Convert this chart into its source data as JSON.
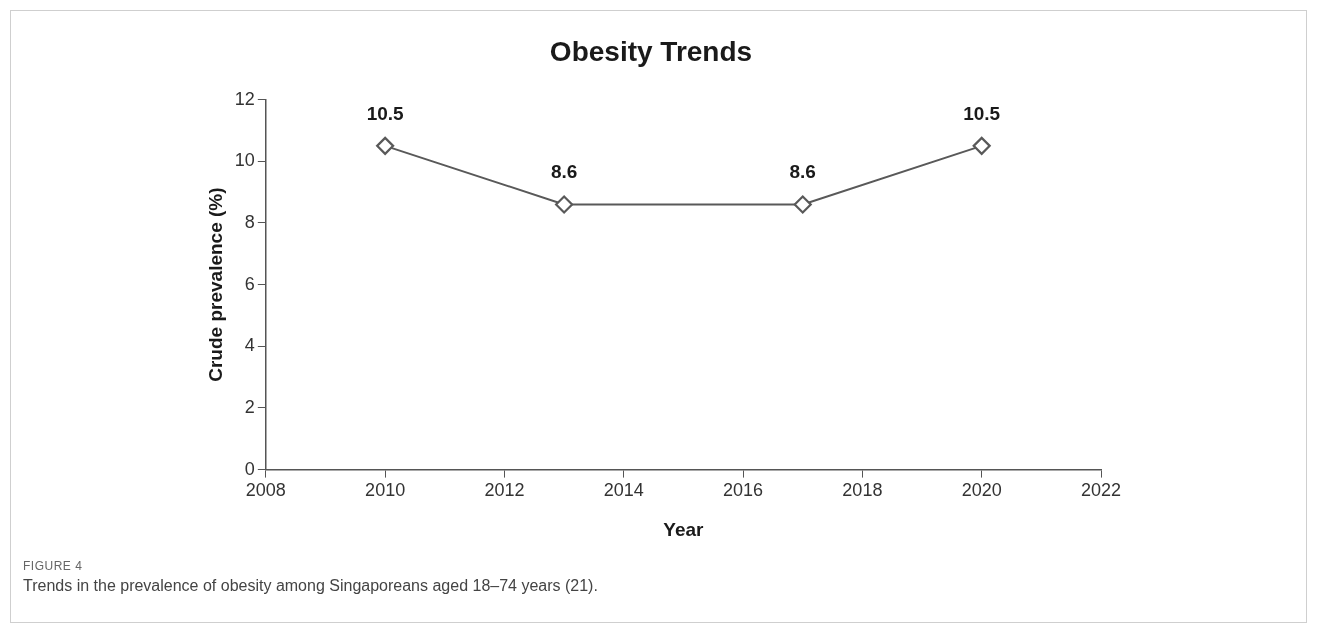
{
  "chart_data": {
    "type": "line",
    "title": "Obesity Trends",
    "xlabel": "Year",
    "ylabel": "Crude prevalence (%)",
    "x": [
      2010,
      2013,
      2017,
      2020
    ],
    "series": [
      {
        "color": "#595959",
        "values": [
          10.5,
          8.6,
          8.6,
          10.5
        ]
      }
    ],
    "xlim": [
      2008,
      2022
    ],
    "xticks": [
      2008,
      2010,
      2012,
      2014,
      2016,
      2018,
      2020,
      2022
    ],
    "ylim": [
      0,
      12
    ],
    "yticks": [
      0,
      2,
      4,
      6,
      8,
      10,
      12
    ],
    "grid": false,
    "legend": false,
    "marker": "diamond",
    "line_style": "solid",
    "data_labels": true,
    "annotations": [
      "FIGURE 4",
      "Trends in the prevalence of obesity among Singaporeans aged 18–74 years (21)."
    ]
  }
}
